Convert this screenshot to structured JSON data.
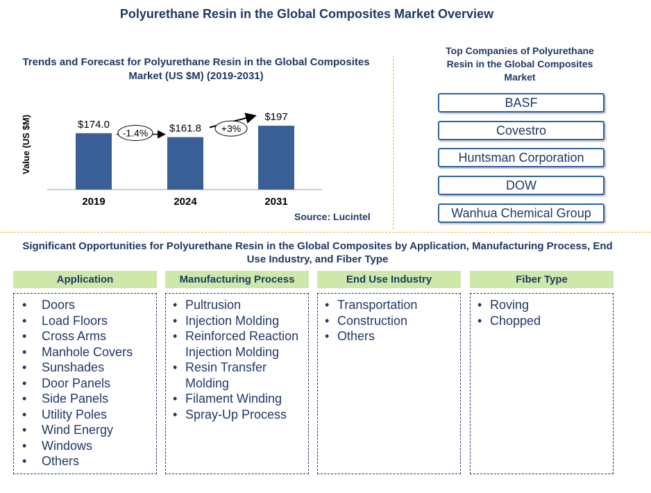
{
  "page": {
    "title": "Polyurethane Resin in the Global Composites Market Overview"
  },
  "chart_data": {
    "type": "bar",
    "title": "Trends and Forecast for Polyurethane Resin in the Global Composites Market (US $M) (2019-2031)",
    "ylabel": "Value (US $M)",
    "xlabel": "",
    "categories": [
      "2019",
      "2024",
      "2031"
    ],
    "values": [
      174.0,
      161.8,
      197
    ],
    "data_labels": [
      "$174.0",
      "$161.8",
      "$197"
    ],
    "ylim": [
      0,
      300
    ],
    "bar_color": "#3a5f96",
    "grid": false,
    "annotations": [
      {
        "from": "2019",
        "to": "2024",
        "label": "-1.4%"
      },
      {
        "from": "2024",
        "to": "2031",
        "label": "+3%"
      }
    ],
    "source": "Source: Lucintel"
  },
  "companies": {
    "title": "Top Companies of Polyurethane Resin in the Global Composites Market",
    "items": [
      "BASF",
      "Covestro",
      "Huntsman Corporation",
      "DOW",
      "Wanhua Chemical Group"
    ]
  },
  "opportunities": {
    "title": "Significant Opportunities for Polyurethane Resin in the Global Composites by Application, Manufacturing Process, End Use Industry, and Fiber Type",
    "header_color": "#cde8a8",
    "categories": [
      {
        "header": "Application",
        "items": [
          "Doors",
          "Load Floors",
          "Cross Arms",
          "Manhole Covers",
          "Sunshades",
          "Door Panels",
          "Side Panels",
          "Utility Poles",
          "Wind Energy",
          "Windows",
          "Others"
        ]
      },
      {
        "header": "Manufacturing Process",
        "items": [
          "Pultrusion",
          "Injection Molding",
          "Reinforced Reaction Injection Molding",
          "Resin Transfer Molding",
          "Filament Winding",
          "Spray-Up Process"
        ]
      },
      {
        "header": "End Use Industry",
        "items": [
          "Transportation",
          "Construction",
          "Others"
        ]
      },
      {
        "header": "Fiber Type",
        "items": [
          "Roving",
          "Chopped"
        ]
      }
    ]
  }
}
